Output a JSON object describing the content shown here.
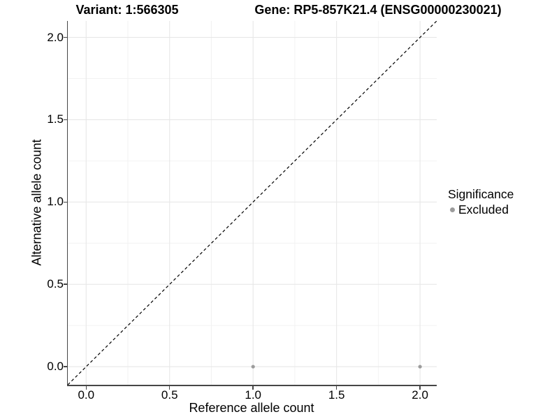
{
  "figure": {
    "title_variant": "Variant: 1:566305",
    "title_gene": "Gene: RP5-857K21.4 (ENSG00000230021)"
  },
  "chart_data": {
    "type": "scatter",
    "title": "Variant: 1:566305    Gene: RP5-857K21.4 (ENSG00000230021)",
    "xlabel": "Reference allele count",
    "ylabel": "Alternative allele count",
    "xlim": [
      -0.11,
      2.1
    ],
    "ylim": [
      -0.11,
      2.1
    ],
    "x_ticks": [
      0.0,
      0.5,
      1.0,
      1.5,
      2.0
    ],
    "y_ticks": [
      0.0,
      0.5,
      1.0,
      1.5,
      2.0
    ],
    "x_tick_labels": [
      "0.0",
      "0.5",
      "1.0",
      "1.5",
      "2.0"
    ],
    "y_tick_labels": [
      "0.0",
      "0.5",
      "1.0",
      "1.5",
      "2.0"
    ],
    "x_minor_ticks": [
      0.25,
      0.75,
      1.25,
      1.75
    ],
    "y_minor_ticks": [
      0.25,
      0.75,
      1.25,
      1.75
    ],
    "grid": "major and minor gridlines, white panel",
    "identity_line": {
      "slope": 1,
      "intercept": 0,
      "style": "dashed",
      "color": "#000000"
    },
    "series": [
      {
        "name": "Excluded",
        "color": "#9c9c9c",
        "marker": "circle",
        "points": [
          {
            "x": 1.0,
            "y": 0.0
          },
          {
            "x": 2.0,
            "y": 0.0
          }
        ]
      }
    ],
    "legend": {
      "title": "Significance",
      "position": "right",
      "entries": [
        {
          "label": "Excluded",
          "color": "#9c9c9c",
          "marker": "circle"
        }
      ]
    }
  },
  "colors": {
    "background": "#ffffff",
    "grid_major": "#e7e7e7",
    "grid_minor": "#f2f2f2",
    "axis_line": "#464646",
    "tick": "#464646",
    "text": "#000000",
    "point": "#9c9c9c",
    "identity_line": "#000000"
  }
}
